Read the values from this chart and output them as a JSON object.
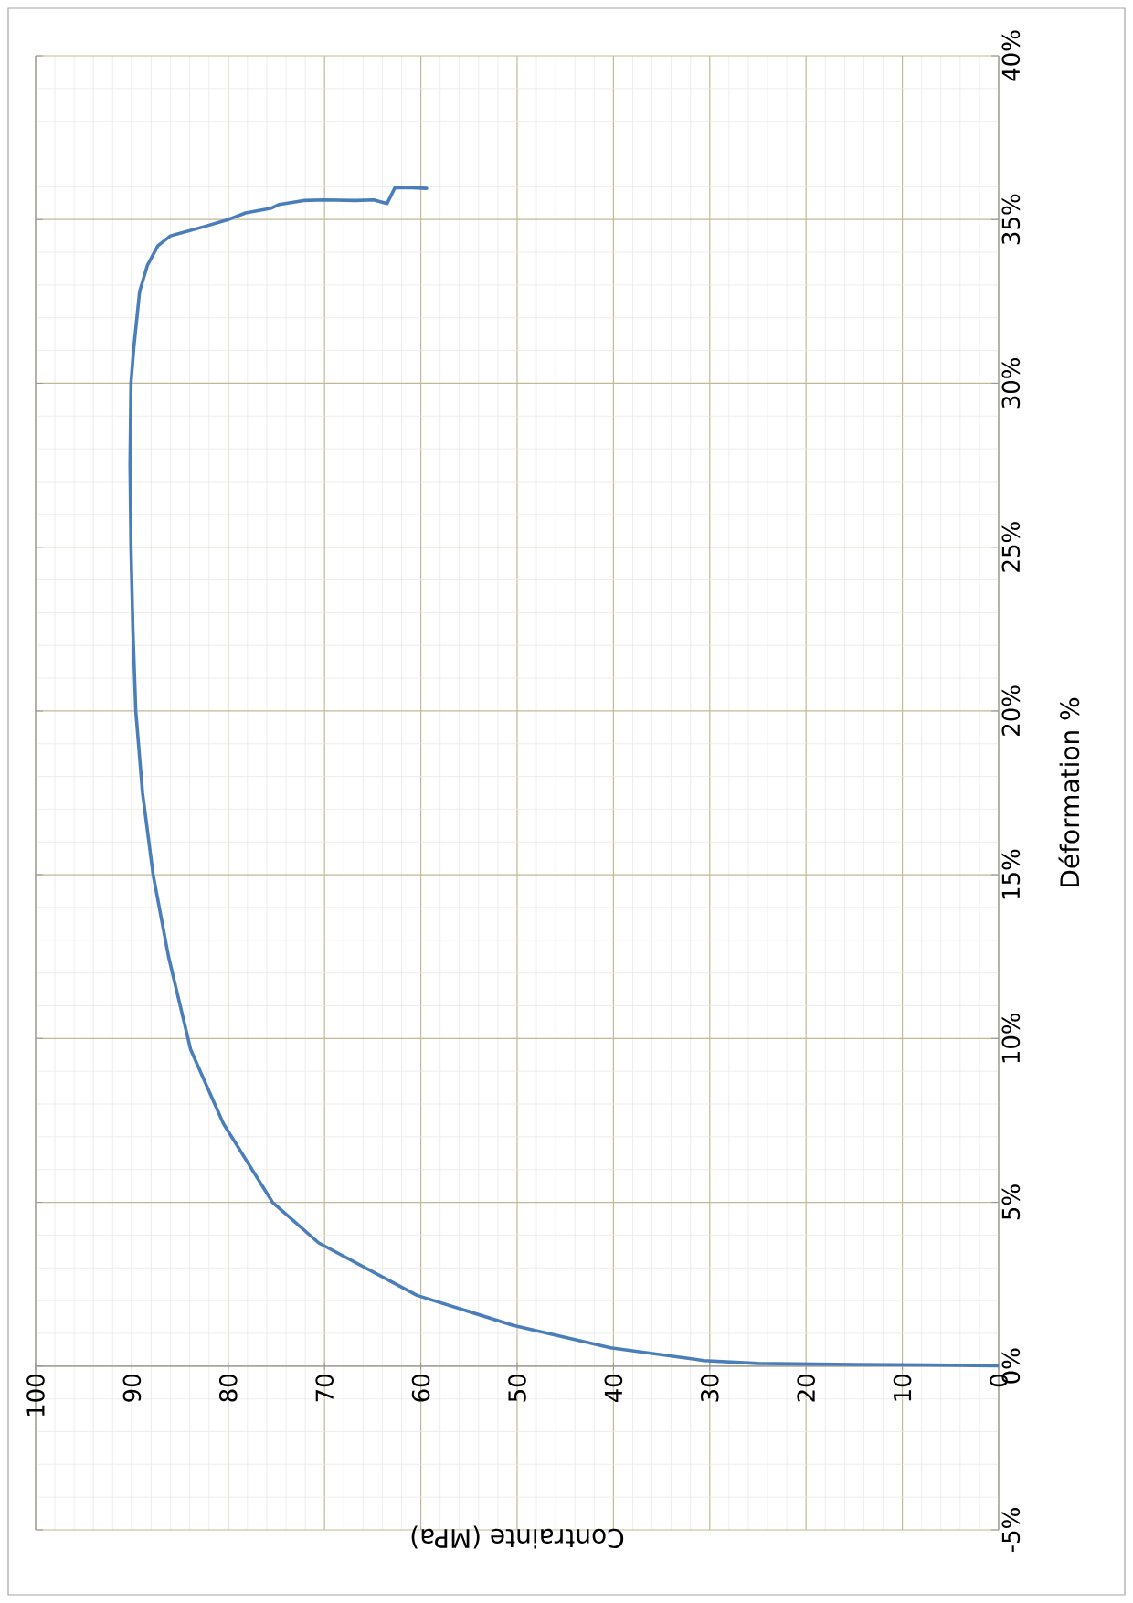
{
  "chart_data": {
    "type": "line",
    "xlabel": "Contrainte (MPa)",
    "ylabel": "Déformation %",
    "xlim": [
      100,
      0
    ],
    "ylim": [
      -5,
      40
    ],
    "xticks": [
      100,
      90,
      80,
      70,
      60,
      50,
      40,
      30,
      20,
      10,
      0
    ],
    "yticks": [
      {
        "value": -5,
        "label": "-5%"
      },
      {
        "value": 0,
        "label": "0%"
      },
      {
        "value": 5,
        "label": "5%"
      },
      {
        "value": 10,
        "label": "10%"
      },
      {
        "value": 15,
        "label": "15%"
      },
      {
        "value": 20,
        "label": "20%"
      },
      {
        "value": 25,
        "label": "25%"
      },
      {
        "value": 30,
        "label": "30%"
      },
      {
        "value": 35,
        "label": "35%"
      },
      {
        "value": 40,
        "label": "40%"
      }
    ],
    "grid": true,
    "series": [
      {
        "color": "#4a7ebb",
        "x": [
          0,
          5,
          15,
          25,
          30.6,
          40.3,
          50.4,
          60.4,
          70.6,
          75.4,
          80.5,
          83.9,
          86.2,
          87.8,
          88.9,
          89.6,
          89.9,
          90.1,
          90.2,
          90.1,
          89.8,
          89.2,
          88.4,
          87.3,
          86.0,
          82.3,
          80.0,
          78.2,
          75.5,
          74.7,
          72.2,
          70.0,
          66.8,
          64.9,
          63.5,
          62.7,
          61.5,
          59.4
        ],
        "values": [
          0,
          0.03,
          0.05,
          0.08,
          0.17,
          0.56,
          1.24,
          2.16,
          3.76,
          5.0,
          7.4,
          9.66,
          12.5,
          15,
          17.5,
          20,
          22.5,
          25,
          27.5,
          30,
          31.1,
          32.8,
          33.6,
          34.2,
          34.5,
          34.8,
          35.0,
          35.2,
          35.35,
          35.46,
          35.58,
          35.6,
          35.58,
          35.6,
          35.49,
          35.97,
          35.98,
          35.95
        ]
      }
    ]
  }
}
